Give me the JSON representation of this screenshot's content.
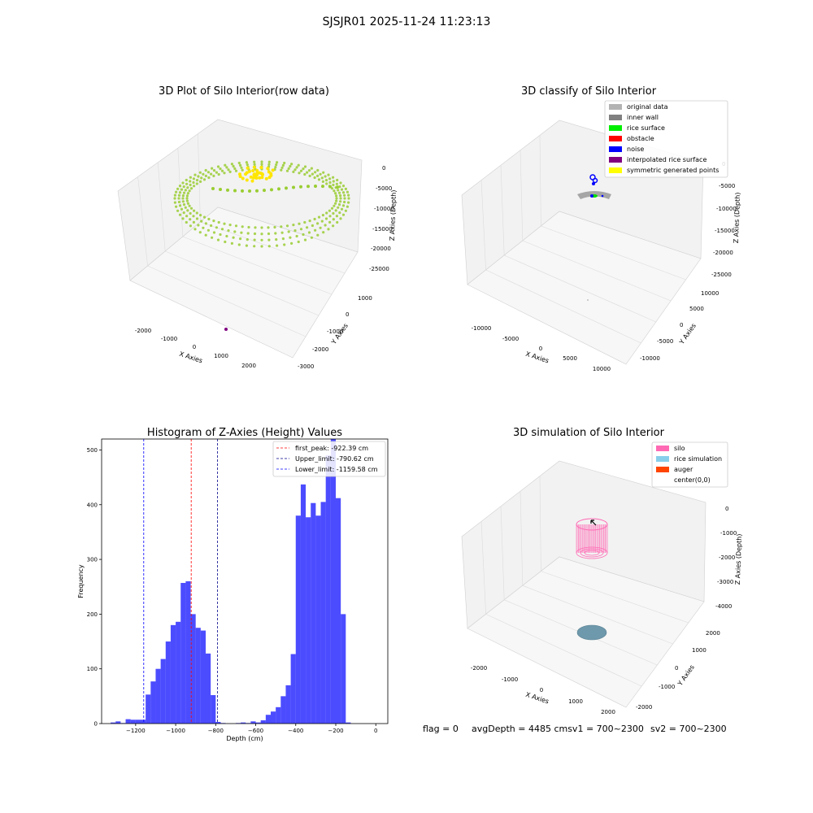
{
  "suptitle": "SJSJR01 2025-11-24 11:23:13",
  "panels": {
    "raw": {
      "title": "3D Plot of Silo Interior(row data)",
      "xlabel": "X Axies",
      "ylabel": "Y Axies",
      "zlabel": "Z Axies (Depth)",
      "xticks": [
        "-2000",
        "-1000",
        "0",
        "1000",
        "2000"
      ],
      "yticks": [
        "-3000",
        "-2000",
        "-1000",
        "0",
        "1000"
      ],
      "zticks": [
        "0",
        "-5000",
        "-10000",
        "-15000",
        "-20000",
        "-25000"
      ],
      "colors": {
        "points": "#9ACD32",
        "symmetric": "#FFE600",
        "outlier": "#800080"
      }
    },
    "classify": {
      "title": "3D classify of Silo Interior",
      "xlabel": "X Axies",
      "ylabel": "Y Axies",
      "zlabel": "Z Axies (Depth)",
      "xticks": [
        "-10000",
        "-5000",
        "0",
        "5000",
        "10000"
      ],
      "yticks": [
        "-10000",
        "-5000",
        "0",
        "5000",
        "10000"
      ],
      "zticks": [
        "0",
        "-5000",
        "-10000",
        "-15000",
        "-20000",
        "-25000"
      ],
      "legend": [
        {
          "label": "original data",
          "color": "#b3b3b3"
        },
        {
          "label": "inner wall",
          "color": "#808080"
        },
        {
          "label": "rice surface",
          "color": "#00ee00"
        },
        {
          "label": "obstacle",
          "color": "#ff0000"
        },
        {
          "label": "noise",
          "color": "#0000ff"
        },
        {
          "label": "interpolated rice surface",
          "color": "#800080"
        },
        {
          "label": "symmetric generated points",
          "color": "#ffff00"
        }
      ]
    },
    "simulation": {
      "title": "3D simulation of Silo Interior",
      "xlabel": "X Axies",
      "ylabel": "Y Axies",
      "zlabel": "Z Axies (Depth)",
      "xticks": [
        "-2000",
        "-1000",
        "0",
        "1000",
        "2000"
      ],
      "yticks": [
        "-2000",
        "-1000",
        "0",
        "1000",
        "2000"
      ],
      "zticks": [
        "0",
        "-1000",
        "-2000",
        "-3000",
        "-4000"
      ],
      "legend": [
        {
          "label": "silo",
          "color": "#ff69b4"
        },
        {
          "label": "rice simulation",
          "color": "#87ceeb"
        },
        {
          "label": "auger",
          "color": "#ff4500"
        },
        {
          "label": "center(0,0)",
          "color": "#ffffff"
        }
      ]
    }
  },
  "chart_data": {
    "type": "bar",
    "title": "Histogram of Z-Axies (Height) Values",
    "xlabel": "Depth (cm)",
    "ylabel": "Frequency",
    "xlim": [
      -1370,
      60
    ],
    "ylim": [
      0,
      520
    ],
    "xticks": [
      -1200,
      -1000,
      -800,
      -600,
      -400,
      -200,
      0
    ],
    "yticks": [
      0,
      100,
      200,
      300,
      400,
      500
    ],
    "bin_width": 25,
    "bin_start": -1325,
    "values": [
      2,
      4,
      1,
      8,
      7,
      7,
      7,
      53,
      77,
      100,
      118,
      150,
      180,
      186,
      257,
      260,
      200,
      175,
      170,
      128,
      52,
      3,
      1,
      0,
      0,
      1,
      2,
      1,
      4,
      2,
      6,
      16,
      22,
      30,
      50,
      70,
      127,
      380,
      437,
      377,
      403,
      380,
      405,
      490,
      520,
      412,
      200,
      2
    ],
    "bar_color": "#0000ff",
    "lines": [
      {
        "label": "first_peak: -922.39 cm",
        "x": -922.39,
        "color": "#ff0000"
      },
      {
        "label": "Upper_limit: -790.62 cm",
        "x": -790.62,
        "color": "#00008b"
      },
      {
        "label": "Lower_limit: -1159.58 cm",
        "x": -1159.58,
        "color": "#0000ff"
      }
    ]
  },
  "status": {
    "flag": "flag = 0",
    "avg": "avgDepth = 4485 cmsv1 = 700~2300",
    "sv2": "sv2 = 700~2300"
  }
}
